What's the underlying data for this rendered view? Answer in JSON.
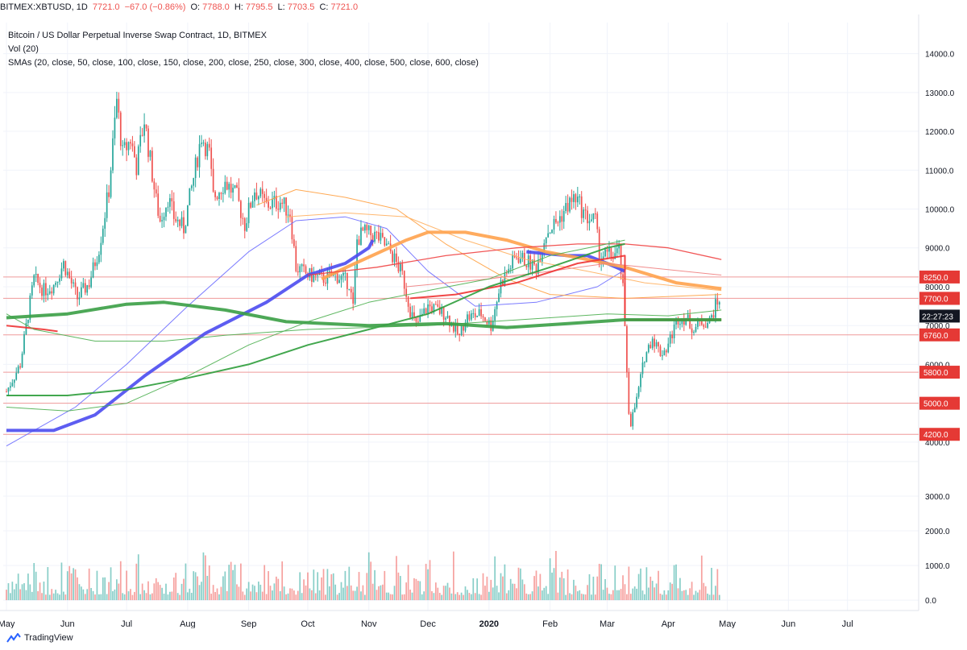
{
  "header": {
    "symbol": "BITMEX:XBTUSD, 1D",
    "last": "7721.0",
    "change": "−67.0 (−0.86%)",
    "open_label": "O:",
    "open": "7788.0",
    "high_label": "H:",
    "high": "7795.5",
    "low_label": "L:",
    "low": "7703.5",
    "close_label": "C:",
    "close": "7721.0"
  },
  "legend": {
    "title": "Bitcoin / US Dollar Perpetual Inverse Swap Contract, 1D, BITMEX",
    "volume": "Vol (20)",
    "smas": "SMAs (20, close, 50, close, 100, close, 150, close, 200, close, 250, close, 300, close, 400, close, 500, close, 600, close)"
  },
  "footer": {
    "brand": "TradingView"
  },
  "colors": {
    "up": "#26a69a",
    "down": "#ef5350",
    "grid": "#f0f3fa",
    "axis_text": "#131722"
  },
  "chart_data": {
    "type": "candlestick",
    "title": "Bitcoin / US Dollar Perpetual Inverse Swap Contract, 1D, BITMEX",
    "price_ylim": [
      3500,
      14800
    ],
    "volume_ylim": [
      -300,
      4000
    ],
    "price_ticks": [
      4000,
      5000,
      6000,
      7000,
      8000,
      9000,
      10000,
      11000,
      12000,
      13000,
      14000
    ],
    "volume_ticks": [
      0,
      1000,
      2000,
      3000
    ],
    "x_ticks": [
      "May",
      "Jun",
      "Jul",
      "Aug",
      "Sep",
      "Oct",
      "Nov",
      "Dec",
      "2020",
      "Feb",
      "Mar",
      "Apr",
      "May",
      "Jun",
      "Jul"
    ],
    "last_price_label": "7700.0",
    "countdown": "22:27:23",
    "horizontal_levels": [
      {
        "value": 8250,
        "label": "8250.0"
      },
      {
        "value": 7700,
        "label": "7700.0"
      },
      {
        "value": 6760,
        "label": "6760.0"
      },
      {
        "value": 5800,
        "label": "5800.0"
      },
      {
        "value": 5000,
        "label": "5000.0"
      },
      {
        "value": 4200,
        "label": "4200.0"
      }
    ],
    "price_path": [
      [
        "2019-05-01",
        5300
      ],
      [
        "2019-05-08",
        6000
      ],
      [
        "2019-05-12",
        7300
      ],
      [
        "2019-05-15",
        8200
      ],
      [
        "2019-05-20",
        7900
      ],
      [
        "2019-05-25",
        8050
      ],
      [
        "2019-05-30",
        8600
      ],
      [
        "2019-06-06",
        7700
      ],
      [
        "2019-06-12",
        8100
      ],
      [
        "2019-06-17",
        9000
      ],
      [
        "2019-06-22",
        10500
      ],
      [
        "2019-06-26",
        12800
      ],
      [
        "2019-06-29",
        11400
      ],
      [
        "2019-07-03",
        11800
      ],
      [
        "2019-07-06",
        11100
      ],
      [
        "2019-07-10",
        12300
      ],
      [
        "2019-07-16",
        10200
      ],
      [
        "2019-07-18",
        9700
      ],
      [
        "2019-07-22",
        10300
      ],
      [
        "2019-07-25",
        9800
      ],
      [
        "2019-07-30",
        9500
      ],
      [
        "2019-08-04",
        10800
      ],
      [
        "2019-08-08",
        11900
      ],
      [
        "2019-08-12",
        11400
      ],
      [
        "2019-08-14",
        10300
      ],
      [
        "2019-08-20",
        10700
      ],
      [
        "2019-08-26",
        10300
      ],
      [
        "2019-08-30",
        9600
      ],
      [
        "2019-09-04",
        10500
      ],
      [
        "2019-09-10",
        10100
      ],
      [
        "2019-09-17",
        10200
      ],
      [
        "2019-09-22",
        9900
      ],
      [
        "2019-09-25",
        8500
      ],
      [
        "2019-10-01",
        8300
      ],
      [
        "2019-10-08",
        8200
      ],
      [
        "2019-10-15",
        8300
      ],
      [
        "2019-10-22",
        8100
      ],
      [
        "2019-10-24",
        7450
      ],
      [
        "2019-10-26",
        9200
      ],
      [
        "2019-10-29",
        9400
      ],
      [
        "2019-11-05",
        9300
      ],
      [
        "2019-11-12",
        8900
      ],
      [
        "2019-11-18",
        8300
      ],
      [
        "2019-11-22",
        7400
      ],
      [
        "2019-11-25",
        7000
      ],
      [
        "2019-12-01",
        7500
      ],
      [
        "2019-12-10",
        7300
      ],
      [
        "2019-12-17",
        6700
      ],
      [
        "2019-12-20",
        7200
      ],
      [
        "2019-12-28",
        7300
      ],
      [
        "2020-01-02",
        7000
      ],
      [
        "2020-01-07",
        8100
      ],
      [
        "2020-01-15",
        8800
      ],
      [
        "2020-01-25",
        8500
      ],
      [
        "2020-01-30",
        9400
      ],
      [
        "2020-02-05",
        9700
      ],
      [
        "2020-02-10",
        10100
      ],
      [
        "2020-02-14",
        10300
      ],
      [
        "2020-02-19",
        9800
      ],
      [
        "2020-02-24",
        9700
      ],
      [
        "2020-02-26",
        8800
      ],
      [
        "2020-03-03",
        8800
      ],
      [
        "2020-03-07",
        8900
      ],
      [
        "2020-03-09",
        7900
      ],
      [
        "2020-03-12",
        4800
      ],
      [
        "2020-03-13",
        4500
      ],
      [
        "2020-03-16",
        5100
      ],
      [
        "2020-03-20",
        6200
      ],
      [
        "2020-03-24",
        6700
      ],
      [
        "2020-03-28",
        6300
      ],
      [
        "2020-03-31",
        6400
      ],
      [
        "2020-04-06",
        7200
      ],
      [
        "2020-04-10",
        7200
      ],
      [
        "2020-04-14",
        6900
      ],
      [
        "2020-04-18",
        7100
      ],
      [
        "2020-04-22",
        7100
      ],
      [
        "2020-04-25",
        7500
      ],
      [
        "2020-04-28",
        7788
      ]
    ],
    "sma_series": [
      {
        "style": "thin-blue",
        "points": [
          [
            "2019-05-01",
            3900
          ],
          [
            "2019-06-05",
            4900
          ],
          [
            "2019-07-01",
            6000
          ],
          [
            "2019-08-01",
            7500
          ],
          [
            "2019-09-01",
            8900
          ],
          [
            "2019-09-25",
            9700
          ],
          [
            "2019-10-20",
            9800
          ],
          [
            "2019-11-10",
            9500
          ],
          [
            "2019-12-01",
            8400
          ],
          [
            "2019-12-25",
            7500
          ],
          [
            "2020-01-25",
            7600
          ],
          [
            "2020-02-25",
            8000
          ],
          [
            "2020-03-12",
            8500
          ]
        ]
      },
      {
        "style": "thick-blue",
        "points": [
          [
            "2019-05-01",
            4300
          ],
          [
            "2019-05-25",
            4300
          ],
          [
            "2019-06-15",
            4700
          ],
          [
            "2019-07-10",
            5700
          ],
          [
            "2019-08-10",
            6800
          ],
          [
            "2019-09-10",
            7600
          ],
          [
            "2019-10-01",
            8300
          ],
          [
            "2019-10-20",
            8600
          ],
          [
            "2019-11-01",
            9000
          ],
          [
            "2019-11-03",
            9200
          ]
        ]
      },
      {
        "style": "thick-blue",
        "points": [
          [
            "2020-01-20",
            8900
          ],
          [
            "2020-02-10",
            8800
          ],
          [
            "2020-02-20",
            8800
          ],
          [
            "2020-03-01",
            8600
          ],
          [
            "2020-03-10",
            8400
          ]
        ]
      },
      {
        "style": "thin-orange",
        "points": [
          [
            "2019-09-05",
            10100
          ],
          [
            "2019-09-25",
            10500
          ],
          [
            "2019-10-20",
            10300
          ],
          [
            "2019-11-15",
            10000
          ],
          [
            "2019-12-10",
            9100
          ],
          [
            "2020-01-10",
            8200
          ],
          [
            "2020-02-01",
            7800
          ],
          [
            "2020-03-10",
            7700
          ],
          [
            "2020-04-28",
            7800
          ]
        ]
      },
      {
        "style": "mid-orange",
        "points": [
          [
            "2019-09-20",
            9800
          ],
          [
            "2019-10-20",
            9900
          ],
          [
            "2019-11-20",
            9800
          ],
          [
            "2019-12-20",
            9200
          ],
          [
            "2020-01-20",
            8700
          ],
          [
            "2020-02-20",
            8400
          ],
          [
            "2020-03-20",
            8100
          ],
          [
            "2020-04-28",
            7900
          ]
        ]
      },
      {
        "style": "thick-orange",
        "points": [
          [
            "2019-10-08",
            8200
          ],
          [
            "2019-10-25",
            8600
          ],
          [
            "2019-11-20",
            9200
          ],
          [
            "2019-12-01",
            9400
          ],
          [
            "2019-12-20",
            9400
          ],
          [
            "2020-01-10",
            9200
          ],
          [
            "2020-01-30",
            8900
          ],
          [
            "2020-02-20",
            8700
          ],
          [
            "2020-03-10",
            8500
          ],
          [
            "2020-04-05",
            8100
          ],
          [
            "2020-04-28",
            7950
          ]
        ]
      },
      {
        "style": "thin-red",
        "points": [
          [
            "2019-10-01",
            8300
          ],
          [
            "2019-11-05",
            8500
          ],
          [
            "2019-12-10",
            8800
          ],
          [
            "2020-01-15",
            9000
          ],
          [
            "2020-02-15",
            9100
          ],
          [
            "2020-03-10",
            9100
          ],
          [
            "2020-04-01",
            9000
          ],
          [
            "2020-04-28",
            8700
          ]
        ]
      },
      {
        "style": "thin-red2",
        "points": [
          [
            "2019-11-20",
            8000
          ],
          [
            "2020-01-01",
            8200
          ],
          [
            "2020-02-01",
            8400
          ],
          [
            "2020-03-01",
            8600
          ],
          [
            "2020-03-20",
            8500
          ],
          [
            "2020-04-28",
            8300
          ]
        ]
      },
      {
        "style": "mid-red",
        "points": [
          [
            "2019-05-01",
            7000
          ],
          [
            "2019-05-20",
            6900
          ],
          [
            "2019-05-27",
            6850
          ]
        ]
      },
      {
        "style": "mid-red",
        "points": [
          [
            "2019-11-22",
            7700
          ],
          [
            "2019-12-15",
            7800
          ],
          [
            "2020-01-15",
            8100
          ],
          [
            "2020-02-15",
            8600
          ],
          [
            "2020-03-10",
            8800
          ],
          [
            "2020-03-10",
            7150
          ],
          [
            "2020-04-28",
            7150
          ]
        ]
      },
      {
        "style": "thin-green",
        "points": [
          [
            "2019-05-01",
            4900
          ],
          [
            "2019-06-01",
            4800
          ],
          [
            "2019-07-01",
            5000
          ],
          [
            "2019-08-01",
            5700
          ],
          [
            "2019-09-01",
            6500
          ],
          [
            "2019-10-01",
            7100
          ],
          [
            "2019-11-01",
            7600
          ],
          [
            "2019-12-01",
            7900
          ],
          [
            "2020-01-01",
            8200
          ],
          [
            "2020-02-01",
            8800
          ],
          [
            "2020-03-01",
            9100
          ],
          [
            "2020-03-10",
            9200
          ]
        ]
      },
      {
        "style": "mid-green",
        "points": [
          [
            "2019-05-01",
            5200
          ],
          [
            "2019-06-01",
            5200
          ],
          [
            "2019-07-01",
            5350
          ],
          [
            "2019-08-01",
            5650
          ],
          [
            "2019-09-01",
            6000
          ],
          [
            "2019-10-01",
            6500
          ],
          [
            "2019-11-01",
            6900
          ],
          [
            "2019-12-01",
            7300
          ],
          [
            "2020-01-01",
            8000
          ],
          [
            "2020-02-01",
            8500
          ],
          [
            "2020-03-01",
            9000
          ],
          [
            "2020-03-10",
            9100
          ]
        ]
      },
      {
        "style": "thin-green",
        "points": [
          [
            "2019-05-01",
            7300
          ],
          [
            "2019-05-15",
            6900
          ],
          [
            "2019-06-15",
            6600
          ],
          [
            "2019-07-20",
            6600
          ],
          [
            "2019-08-20",
            6750
          ],
          [
            "2019-10-01",
            6900
          ],
          [
            "2019-11-01",
            6950
          ],
          [
            "2019-12-01",
            7000
          ],
          [
            "2020-01-01",
            7100
          ],
          [
            "2020-02-01",
            7200
          ],
          [
            "2020-03-01",
            7300
          ],
          [
            "2020-04-01",
            7250
          ],
          [
            "2020-04-28",
            7400
          ]
        ]
      },
      {
        "style": "thick-green",
        "points": [
          [
            "2019-05-01",
            7200
          ],
          [
            "2019-06-01",
            7300
          ],
          [
            "2019-07-01",
            7550
          ],
          [
            "2019-07-20",
            7600
          ],
          [
            "2019-08-20",
            7400
          ],
          [
            "2019-09-20",
            7100
          ],
          [
            "2019-11-01",
            7000
          ],
          [
            "2019-12-10",
            7050
          ],
          [
            "2020-01-10",
            6950
          ],
          [
            "2020-02-10",
            7050
          ],
          [
            "2020-03-10",
            7150
          ],
          [
            "2020-04-28",
            7150
          ]
        ]
      }
    ]
  }
}
